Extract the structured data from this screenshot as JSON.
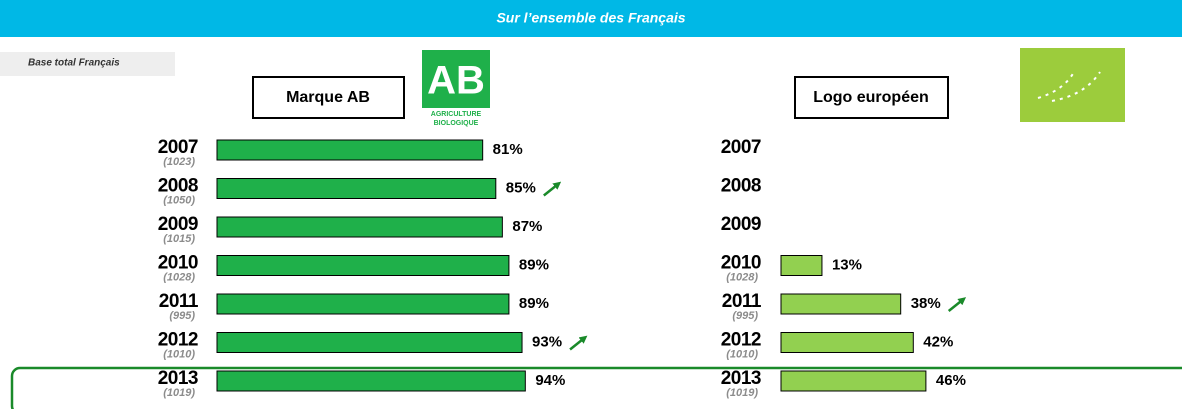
{
  "header": "Sur l’ensemble des Français",
  "base_note": "Base total Français",
  "chart_data": [
    {
      "type": "bar",
      "title": "Marque AB",
      "logo_text": "AB",
      "logo_caption": [
        "AGRICULTURE",
        "BIOLOGIQUE"
      ],
      "categories": [
        "2007",
        "2008",
        "2009",
        "2010",
        "2011",
        "2012",
        "2013"
      ],
      "bases": [
        "(1023)",
        "(1050)",
        "(1015)",
        "(1028)",
        "(995)",
        "(1010)",
        "(1019)"
      ],
      "values": [
        81,
        85,
        87,
        89,
        89,
        93,
        94
      ],
      "value_labels": [
        "81%",
        "85%",
        "87%",
        "89%",
        "89%",
        "93%",
        "94%"
      ],
      "significant_increase": [
        false,
        true,
        false,
        false,
        false,
        true,
        false
      ],
      "color": "#1fb04a"
    },
    {
      "type": "bar",
      "title": "Logo européen",
      "categories": [
        "2007",
        "2008",
        "2009",
        "2010",
        "2011",
        "2012",
        "2013"
      ],
      "bases": [
        null,
        null,
        null,
        "(1028)",
        "(995)",
        "(1010)",
        "(1019)"
      ],
      "values": [
        null,
        null,
        null,
        13,
        38,
        42,
        46
      ],
      "value_labels": [
        null,
        null,
        null,
        "13%",
        "38%",
        "42%",
        "46%"
      ],
      "significant_increase": [
        false,
        false,
        false,
        false,
        true,
        false,
        false
      ],
      "color": "#92d050"
    }
  ]
}
